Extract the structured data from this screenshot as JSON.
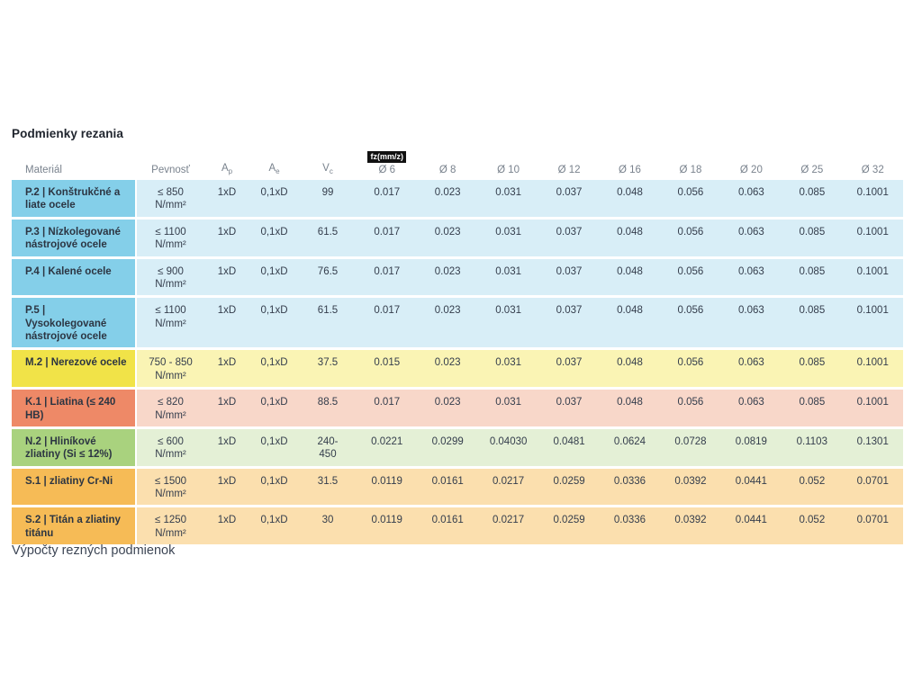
{
  "page": {
    "title": "Podmienky rezania",
    "footer_text": "Výpočty rezných podmienok"
  },
  "table": {
    "fz_badge": "fz(mm/z)",
    "headers": {
      "material": "Materiál",
      "strength": "Pevnosť",
      "ap": {
        "base": "A",
        "sub": "p"
      },
      "ae": {
        "base": "A",
        "sub": "e"
      },
      "vc": {
        "base": "V",
        "sub": "c"
      },
      "diameters": [
        "Ø 6",
        "Ø 8",
        "Ø 10",
        "Ø 12",
        "Ø 16",
        "Ø 18",
        "Ø 20",
        "Ø 25",
        "Ø 32"
      ]
    },
    "colors": {
      "blue": {
        "label": "#84cfe9",
        "row": "#d8eef7"
      },
      "yellow": {
        "label": "#f1e348",
        "row": "#faf4b4"
      },
      "salmon": {
        "label": "#ee8967",
        "row": "#f8d7c9"
      },
      "green": {
        "label": "#a9d27e",
        "row": "#e4f0d6"
      },
      "orange": {
        "label": "#f6bb56",
        "row": "#fbdfae"
      }
    },
    "rows": [
      {
        "color_key": "blue",
        "material": "P.2 | Konštrukčné a liate ocele",
        "strength": "≤ 850\nN/mm²",
        "ap": "1xD",
        "ae": "0,1xD",
        "vc": "99",
        "fz": [
          "0.017",
          "0.023",
          "0.031",
          "0.037",
          "0.048",
          "0.056",
          "0.063",
          "0.085",
          "0.1001"
        ]
      },
      {
        "color_key": "blue",
        "material": "P.3 | Nízkolegované nástrojové ocele",
        "strength": "≤ 1100\nN/mm²",
        "ap": "1xD",
        "ae": "0,1xD",
        "vc": "61.5",
        "fz": [
          "0.017",
          "0.023",
          "0.031",
          "0.037",
          "0.048",
          "0.056",
          "0.063",
          "0.085",
          "0.1001"
        ]
      },
      {
        "color_key": "blue",
        "material": "P.4 | Kalené ocele",
        "strength": "≤ 900\nN/mm²",
        "ap": "1xD",
        "ae": "0,1xD",
        "vc": "76.5",
        "fz": [
          "0.017",
          "0.023",
          "0.031",
          "0.037",
          "0.048",
          "0.056",
          "0.063",
          "0.085",
          "0.1001"
        ]
      },
      {
        "color_key": "blue",
        "material": "P.5 | Vysokolegované nástrojové ocele",
        "strength": "≤ 1100\nN/mm²",
        "ap": "1xD",
        "ae": "0,1xD",
        "vc": "61.5",
        "fz": [
          "0.017",
          "0.023",
          "0.031",
          "0.037",
          "0.048",
          "0.056",
          "0.063",
          "0.085",
          "0.1001"
        ]
      },
      {
        "color_key": "yellow",
        "material": "M.2 | Nerezové ocele",
        "strength": "750 - 850\nN/mm²",
        "ap": "1xD",
        "ae": "0,1xD",
        "vc": "37.5",
        "fz": [
          "0.015",
          "0.023",
          "0.031",
          "0.037",
          "0.048",
          "0.056",
          "0.063",
          "0.085",
          "0.1001"
        ]
      },
      {
        "color_key": "salmon",
        "material": "K.1 | Liatina (≤ 240 HB)",
        "strength": "≤ 820\nN/mm²",
        "ap": "1xD",
        "ae": "0,1xD",
        "vc": "88.5",
        "fz": [
          "0.017",
          "0.023",
          "0.031",
          "0.037",
          "0.048",
          "0.056",
          "0.063",
          "0.085",
          "0.1001"
        ]
      },
      {
        "color_key": "green",
        "material": "N.2 | Hliníkové zliatiny (Si ≤ 12%)",
        "strength": "≤ 600\nN/mm²",
        "ap": "1xD",
        "ae": "0,1xD",
        "vc": "240-\n450",
        "fz": [
          "0.0221",
          "0.0299",
          "0.04030",
          "0.0481",
          "0.0624",
          "0.0728",
          "0.0819",
          "0.1103",
          "0.1301"
        ]
      },
      {
        "color_key": "orange",
        "material": "S.1 | zliatiny Cr-Ni",
        "strength": "≤ 1500\nN/mm²",
        "ap": "1xD",
        "ae": "0,1xD",
        "vc": "31.5",
        "fz": [
          "0.0119",
          "0.0161",
          "0.0217",
          "0.0259",
          "0.0336",
          "0.0392",
          "0.0441",
          "0.052",
          "0.0701"
        ]
      },
      {
        "color_key": "orange",
        "material": "S.2 | Titán a zliatiny titánu",
        "strength": "≤ 1250\nN/mm²",
        "ap": "1xD",
        "ae": "0,1xD",
        "vc": "30",
        "fz": [
          "0.0119",
          "0.0161",
          "0.0217",
          "0.0259",
          "0.0336",
          "0.0392",
          "0.0441",
          "0.052",
          "0.0701"
        ]
      }
    ]
  }
}
